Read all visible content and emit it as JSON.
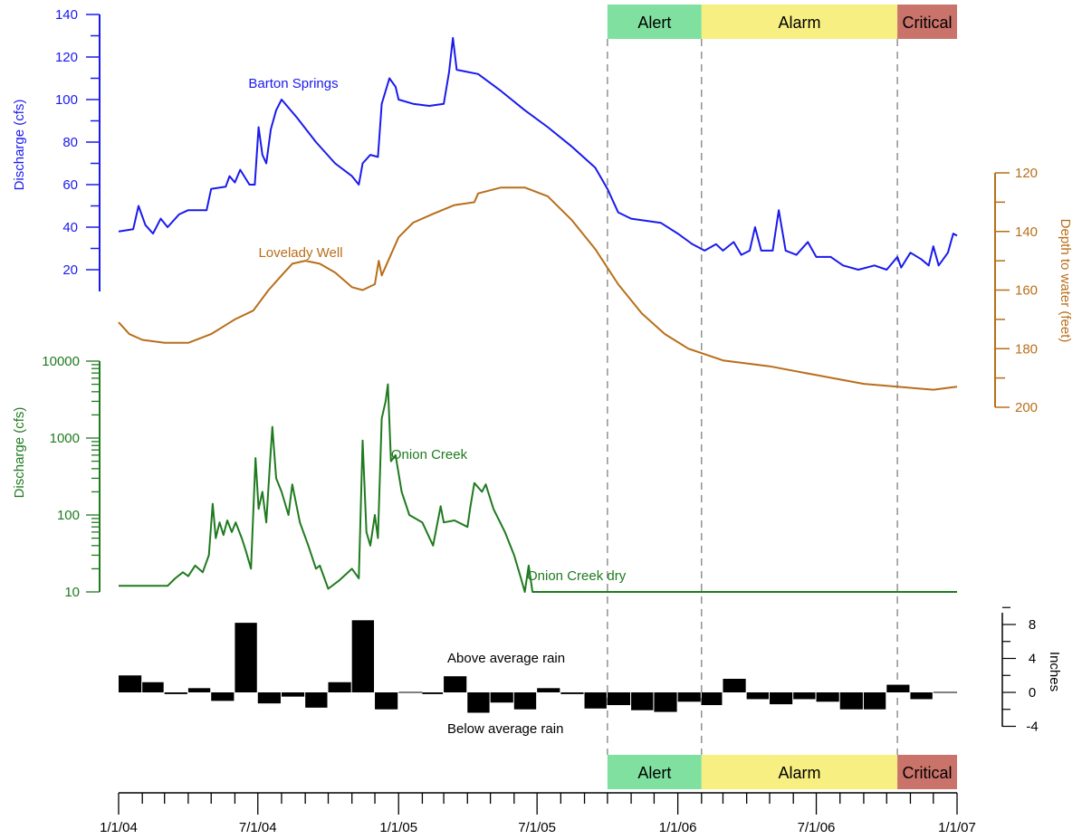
{
  "chart_data": [
    {
      "type": "line",
      "title": "",
      "ylabel": "Discharge (cfs)",
      "xlabel": "",
      "ylim": [
        0,
        140
      ],
      "y_ticks": [
        20,
        40,
        60,
        80,
        100,
        120,
        140
      ],
      "color": "#1a1aee",
      "series": [
        {
          "name": "Barton Springs",
          "points": [
            [
              "2004-01-01",
              38
            ],
            [
              "2004-01-20",
              39
            ],
            [
              "2004-01-27",
              50
            ],
            [
              "2004-02-05",
              41
            ],
            [
              "2004-02-15",
              37
            ],
            [
              "2004-02-25",
              44
            ],
            [
              "2004-03-05",
              40
            ],
            [
              "2004-03-20",
              46
            ],
            [
              "2004-04-01",
              48
            ],
            [
              "2004-04-25",
              48
            ],
            [
              "2004-05-01",
              58
            ],
            [
              "2004-05-20",
              59
            ],
            [
              "2004-05-25",
              64
            ],
            [
              "2004-06-01",
              61
            ],
            [
              "2004-06-08",
              67
            ],
            [
              "2004-06-20",
              60
            ],
            [
              "2004-06-27",
              60
            ],
            [
              "2004-07-02",
              87
            ],
            [
              "2004-07-07",
              74
            ],
            [
              "2004-07-12",
              70
            ],
            [
              "2004-07-18",
              86
            ],
            [
              "2004-07-25",
              95
            ],
            [
              "2004-08-01",
              100
            ],
            [
              "2004-08-20",
              92
            ],
            [
              "2004-09-15",
              80
            ],
            [
              "2004-10-10",
              70
            ],
            [
              "2004-11-01",
              64
            ],
            [
              "2004-11-10",
              60
            ],
            [
              "2004-11-15",
              70
            ],
            [
              "2004-11-25",
              74
            ],
            [
              "2004-12-05",
              73
            ],
            [
              "2004-12-10",
              98
            ],
            [
              "2004-12-20",
              110
            ],
            [
              "2004-12-28",
              106
            ],
            [
              "2005-01-01",
              100
            ],
            [
              "2005-01-20",
              98
            ],
            [
              "2005-02-10",
              97
            ],
            [
              "2005-03-01",
              98
            ],
            [
              "2005-03-08",
              113
            ],
            [
              "2005-03-13",
              129
            ],
            [
              "2005-03-18",
              114
            ],
            [
              "2005-04-15",
              112
            ],
            [
              "2005-05-15",
              104
            ],
            [
              "2005-06-15",
              95
            ],
            [
              "2005-07-15",
              87
            ],
            [
              "2005-08-15",
              78
            ],
            [
              "2005-09-15",
              68
            ],
            [
              "2005-10-01",
              58
            ],
            [
              "2005-10-15",
              47
            ],
            [
              "2005-11-01",
              44
            ],
            [
              "2005-11-20",
              43
            ],
            [
              "2005-12-10",
              42
            ],
            [
              "2006-01-01",
              37
            ],
            [
              "2006-01-20",
              32
            ],
            [
              "2006-02-05",
              29
            ],
            [
              "2006-02-20",
              32
            ],
            [
              "2006-03-01",
              29
            ],
            [
              "2006-03-15",
              33
            ],
            [
              "2006-03-25",
              27
            ],
            [
              "2006-04-05",
              29
            ],
            [
              "2006-04-12",
              40
            ],
            [
              "2006-04-20",
              29
            ],
            [
              "2006-05-05",
              29
            ],
            [
              "2006-05-13",
              48
            ],
            [
              "2006-05-22",
              29
            ],
            [
              "2006-06-05",
              27
            ],
            [
              "2006-06-20",
              33
            ],
            [
              "2006-07-01",
              26
            ],
            [
              "2006-07-20",
              26
            ],
            [
              "2006-08-05",
              22
            ],
            [
              "2006-08-25",
              20
            ],
            [
              "2006-09-15",
              22
            ],
            [
              "2006-10-01",
              20
            ],
            [
              "2006-10-15",
              26
            ],
            [
              "2006-10-20",
              21
            ],
            [
              "2006-11-01",
              28
            ],
            [
              "2006-11-15",
              25
            ],
            [
              "2006-11-25",
              22
            ],
            [
              "2006-12-01",
              31
            ],
            [
              "2006-12-08",
              22
            ],
            [
              "2006-12-20",
              28
            ],
            [
              "2006-12-27",
              37
            ],
            [
              "2007-01-01",
              36
            ]
          ]
        }
      ]
    },
    {
      "type": "line",
      "title": "",
      "ylabel": "Depth to water (feet)",
      "xlabel": "",
      "ylim": [
        120,
        200
      ],
      "y_inverted": true,
      "y_ticks": [
        120,
        140,
        160,
        180,
        200
      ],
      "color": "#b86e1a",
      "series": [
        {
          "name": "Lovelady Well",
          "points": [
            [
              "2004-01-01",
              171
            ],
            [
              "2004-01-15",
              175
            ],
            [
              "2004-02-01",
              177
            ],
            [
              "2004-03-01",
              178
            ],
            [
              "2004-04-01",
              178
            ],
            [
              "2004-05-01",
              175
            ],
            [
              "2004-06-01",
              170
            ],
            [
              "2004-06-25",
              167
            ],
            [
              "2004-07-15",
              160
            ],
            [
              "2004-08-01",
              155
            ],
            [
              "2004-08-15",
              151
            ],
            [
              "2004-09-01",
              150
            ],
            [
              "2004-09-20",
              151
            ],
            [
              "2004-10-10",
              154
            ],
            [
              "2004-11-01",
              159
            ],
            [
              "2004-11-15",
              160
            ],
            [
              "2004-12-01",
              158
            ],
            [
              "2004-12-06",
              150
            ],
            [
              "2004-12-10",
              155
            ],
            [
              "2005-01-01",
              142
            ],
            [
              "2005-01-20",
              137
            ],
            [
              "2005-02-15",
              134
            ],
            [
              "2005-03-15",
              131
            ],
            [
              "2005-04-10",
              130
            ],
            [
              "2005-04-15",
              127
            ],
            [
              "2005-05-15",
              125
            ],
            [
              "2005-06-15",
              125
            ],
            [
              "2005-07-15",
              128
            ],
            [
              "2005-08-15",
              136
            ],
            [
              "2005-09-15",
              146
            ],
            [
              "2005-10-15",
              158
            ],
            [
              "2005-11-15",
              168
            ],
            [
              "2005-12-15",
              175
            ],
            [
              "2006-01-15",
              180
            ],
            [
              "2006-03-01",
              184
            ],
            [
              "2006-05-01",
              186
            ],
            [
              "2006-07-01",
              189
            ],
            [
              "2006-09-01",
              192
            ],
            [
              "2006-10-15",
              193
            ],
            [
              "2006-12-01",
              194
            ],
            [
              "2007-01-01",
              193
            ]
          ]
        }
      ]
    },
    {
      "type": "line",
      "title": "",
      "ylabel": "Discharge (cfs)",
      "xlabel": "",
      "y_scale": "log",
      "ylim": [
        10,
        10000
      ],
      "y_ticks": [
        10,
        100,
        1000,
        10000
      ],
      "color": "#1f7a1f",
      "series": [
        {
          "name": "Onion Creek",
          "points": [
            [
              "2004-01-01",
              12
            ],
            [
              "2004-03-05",
              12
            ],
            [
              "2004-03-15",
              15
            ],
            [
              "2004-03-25",
              18
            ],
            [
              "2004-04-01",
              16
            ],
            [
              "2004-04-10",
              22
            ],
            [
              "2004-04-20",
              18
            ],
            [
              "2004-04-28",
              30
            ],
            [
              "2004-05-03",
              140
            ],
            [
              "2004-05-07",
              50
            ],
            [
              "2004-05-12",
              80
            ],
            [
              "2004-05-17",
              55
            ],
            [
              "2004-05-22",
              85
            ],
            [
              "2004-05-28",
              60
            ],
            [
              "2004-06-02",
              80
            ],
            [
              "2004-06-10",
              50
            ],
            [
              "2004-06-15",
              35
            ],
            [
              "2004-06-22",
              20
            ],
            [
              "2004-06-28",
              550
            ],
            [
              "2004-07-02",
              120
            ],
            [
              "2004-07-07",
              200
            ],
            [
              "2004-07-12",
              80
            ],
            [
              "2004-07-17",
              500
            ],
            [
              "2004-07-20",
              1400
            ],
            [
              "2004-07-25",
              300
            ],
            [
              "2004-08-01",
              200
            ],
            [
              "2004-08-10",
              100
            ],
            [
              "2004-08-15",
              250
            ],
            [
              "2004-08-25",
              80
            ],
            [
              "2004-09-05",
              40
            ],
            [
              "2004-09-15",
              20
            ],
            [
              "2004-09-20",
              22
            ],
            [
              "2004-10-01",
              11
            ],
            [
              "2004-10-15",
              14
            ],
            [
              "2004-11-01",
              20
            ],
            [
              "2004-11-10",
              15
            ],
            [
              "2004-11-15",
              930
            ],
            [
              "2004-11-20",
              60
            ],
            [
              "2004-11-25",
              40
            ],
            [
              "2004-12-01",
              100
            ],
            [
              "2004-12-05",
              50
            ],
            [
              "2004-12-10",
              1800
            ],
            [
              "2004-12-15",
              3000
            ],
            [
              "2004-12-18",
              5000
            ],
            [
              "2004-12-22",
              500
            ],
            [
              "2004-12-28",
              600
            ],
            [
              "2005-01-05",
              200
            ],
            [
              "2005-01-15",
              100
            ],
            [
              "2005-02-01",
              80
            ],
            [
              "2005-02-15",
              40
            ],
            [
              "2005-02-25",
              130
            ],
            [
              "2005-03-01",
              80
            ],
            [
              "2005-03-15",
              85
            ],
            [
              "2005-04-01",
              70
            ],
            [
              "2005-04-05",
              130
            ],
            [
              "2005-04-10",
              260
            ],
            [
              "2005-04-20",
              200
            ],
            [
              "2005-04-25",
              250
            ],
            [
              "2005-05-05",
              120
            ],
            [
              "2005-05-20",
              60
            ],
            [
              "2005-06-01",
              30
            ],
            [
              "2005-06-10",
              15
            ],
            [
              "2005-06-15",
              10
            ],
            [
              "2005-06-20",
              22
            ],
            [
              "2005-06-25",
              10
            ],
            [
              "2007-01-01",
              10
            ]
          ]
        }
      ]
    },
    {
      "type": "bar",
      "title": "",
      "ylabel": "Inches",
      "xlabel": "",
      "ylim": [
        -4,
        10
      ],
      "y_ticks": [
        -4,
        0,
        4,
        8
      ],
      "color": "#000000",
      "categories": [
        "2004-01",
        "2004-02",
        "2004-03",
        "2004-04",
        "2004-05",
        "2004-06",
        "2004-07",
        "2004-08",
        "2004-09",
        "2004-10",
        "2004-11",
        "2004-12",
        "2005-01",
        "2005-02",
        "2005-03",
        "2005-04",
        "2005-05",
        "2005-06",
        "2005-07",
        "2005-08",
        "2005-09",
        "2005-10",
        "2005-11",
        "2005-12",
        "2006-01",
        "2006-02",
        "2006-03",
        "2006-04",
        "2006-05",
        "2006-06",
        "2006-07",
        "2006-08",
        "2006-09",
        "2006-10",
        "2006-11",
        "2006-12"
      ],
      "values": [
        2.0,
        1.2,
        -0.2,
        0.5,
        -1.0,
        8.2,
        -1.3,
        -0.5,
        -1.8,
        1.2,
        8.5,
        -2.0,
        0.0,
        -0.2,
        1.9,
        -2.4,
        -1.2,
        -2.0,
        0.5,
        -0.2,
        -1.9,
        -1.5,
        -2.1,
        -2.3,
        -1.1,
        -1.5,
        1.6,
        -0.8,
        -1.4,
        -0.8,
        -1.1,
        -2.0,
        -2.0,
        0.9,
        -0.8,
        0.0
      ]
    }
  ],
  "x_axis": {
    "range": [
      "2004-01-01",
      "2007-01-01"
    ],
    "tick_labels": [
      {
        "date": "2004-01-01",
        "label": "1/1/04"
      },
      {
        "date": "2004-07-01",
        "label": "7/1/04"
      },
      {
        "date": "2005-01-01",
        "label": "1/1/05"
      },
      {
        "date": "2005-07-01",
        "label": "7/1/05"
      },
      {
        "date": "2006-01-01",
        "label": "1/1/06"
      },
      {
        "date": "2006-07-01",
        "label": "7/1/06"
      },
      {
        "date": "2007-01-01",
        "label": "1/1/07"
      }
    ]
  },
  "annotations": {
    "onion_creek_dry": "Onion Creek dry",
    "above_average_rain": "Above average rain",
    "below_average_rain": "Below average rain"
  },
  "stages": [
    {
      "name": "Alert",
      "start": "2005-10-01",
      "end": "2006-02-01",
      "color": "#7fe0a0"
    },
    {
      "name": "Alarm",
      "start": "2006-02-01",
      "end": "2006-10-15",
      "color": "#f7ef82"
    },
    {
      "name": "Critical",
      "start": "2006-10-15",
      "end": "2007-01-01",
      "color": "#c9736a"
    }
  ]
}
